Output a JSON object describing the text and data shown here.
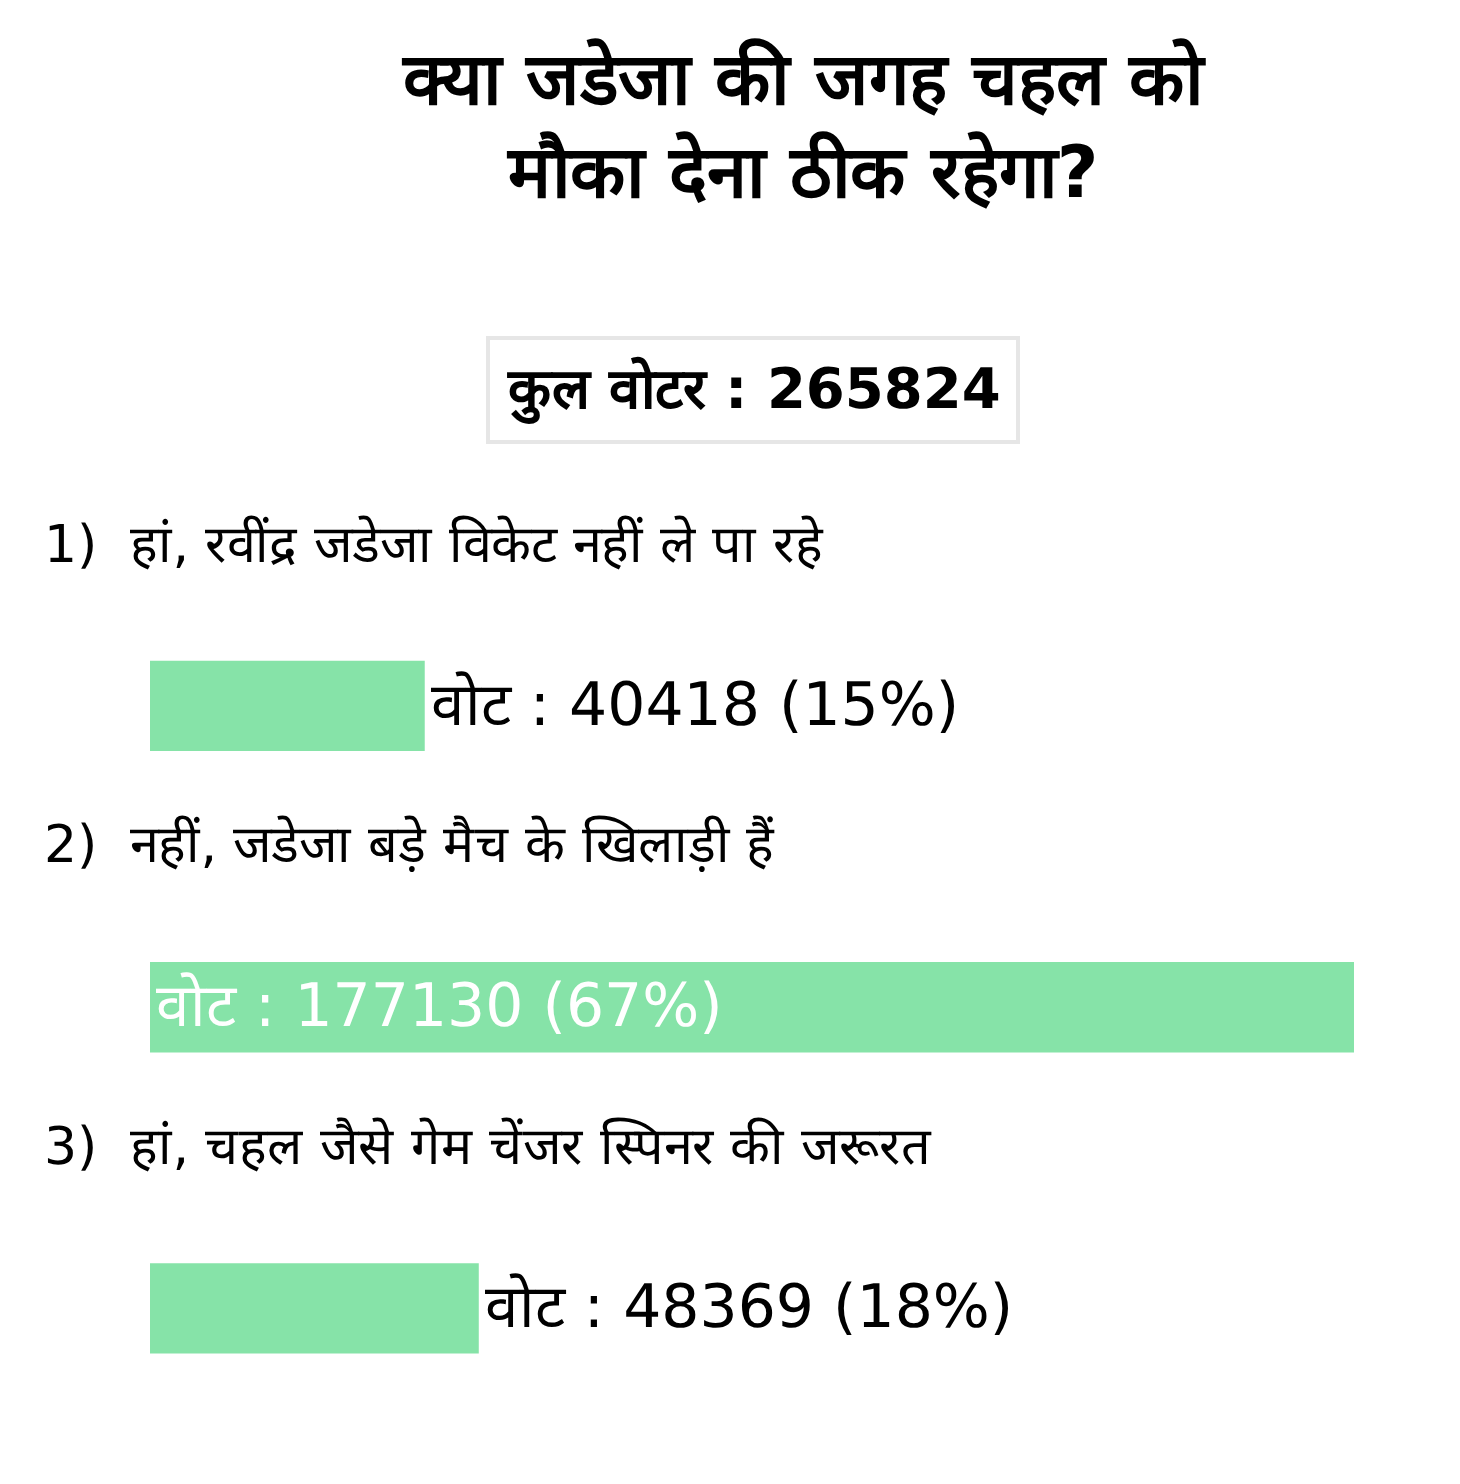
{
  "chart_data": {
    "type": "bar",
    "orientation": "horizontal",
    "title": "क्या जडेजा की जगह चहल को मौका देना ठीक रहेगा?",
    "subtitle": "कुल वोटर : 265824",
    "categories": [
      "1)  हां, रवींद्र जडेजा विकेट नहीं ले पा रहे",
      "2)  नहीं, जडेजा बड़े मैच के खिलाड़ी हैं",
      "3)  हां, चहल जैसे गेम चेंजर स्पिनर की जरूरत"
    ],
    "values": [
      40418,
      177130,
      48369
    ],
    "value_labels": [
      "वोट : 40418 (15%)",
      "वोट : 177130 (67%)",
      "वोट : 48369 (18%)"
    ],
    "color": "#86e3a8",
    "legend": false
  }
}
